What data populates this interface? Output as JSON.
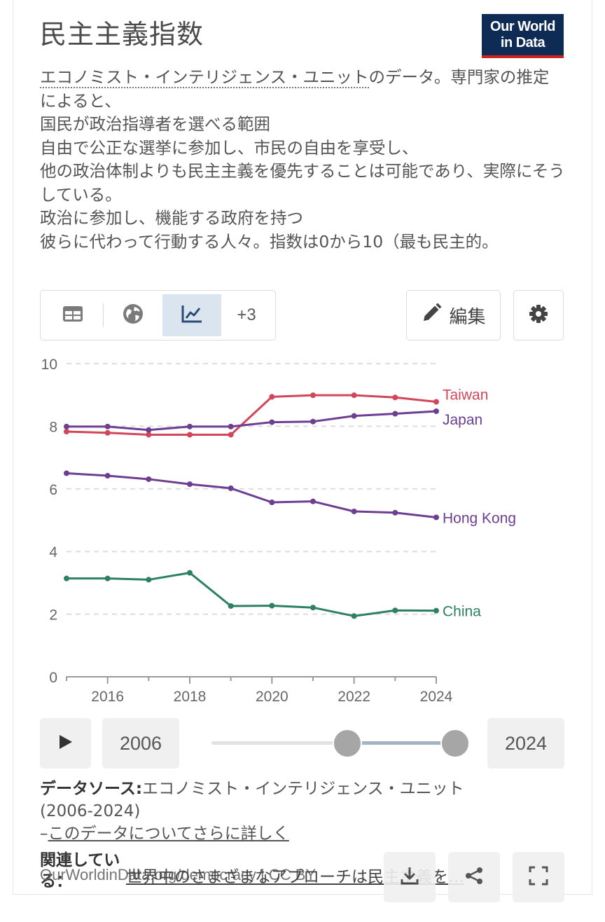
{
  "header": {
    "title": "民主主義指数",
    "logo_line1": "Our World",
    "logo_line2": "in Data"
  },
  "subtitle": {
    "link_text": "エコノミスト・インテリジェンス・ユニット",
    "text": "のデータ。専門家の推定によると、\n国民が政治指導者を選べる範囲\n自由で公正な選挙に参加し、市民の自由を享受し、\n他の政治体制よりも民主主義を優先することは可能であり、実際にそうしている。\n政治に参加し、機能する政府を持つ\n彼らに代わって行動する人々。指数は0から10（最も民主的。"
  },
  "toolbar": {
    "table_icon": "table-icon",
    "map_icon": "globe-icon",
    "chart_icon": "line-chart-icon",
    "more_label": "+3",
    "edit_label": "編集",
    "settings_icon": "gear-icon"
  },
  "chart_data": {
    "type": "line",
    "x": [
      2015,
      2016,
      2017,
      2018,
      2019,
      2020,
      2021,
      2022,
      2023,
      2024
    ],
    "xticks": [
      2016,
      2018,
      2020,
      2022,
      2024
    ],
    "yticks": [
      0,
      2,
      4,
      6,
      8,
      10
    ],
    "ylim": [
      0,
      10
    ],
    "grid": "horizontal dashed",
    "series": [
      {
        "name": "Taiwan",
        "color": "#d2465a",
        "values": [
          7.83,
          7.79,
          7.73,
          7.73,
          7.73,
          8.94,
          8.99,
          8.99,
          8.92,
          8.78
        ]
      },
      {
        "name": "Japan",
        "color": "#6d3e91",
        "values": [
          7.99,
          7.99,
          7.88,
          7.99,
          7.99,
          8.13,
          8.15,
          8.33,
          8.4,
          8.48
        ]
      },
      {
        "name": "Hong Kong",
        "color": "#6d3e91",
        "values": [
          6.5,
          6.42,
          6.31,
          6.15,
          6.02,
          5.57,
          5.6,
          5.28,
          5.24,
          5.09
        ]
      },
      {
        "name": "China",
        "color": "#2d8065",
        "values": [
          3.14,
          3.14,
          3.1,
          3.32,
          2.26,
          2.27,
          2.21,
          1.94,
          2.12,
          2.11
        ]
      }
    ]
  },
  "timeline": {
    "play_icon": "play-icon",
    "start_year": "2006",
    "end_year": "2024"
  },
  "source": {
    "label": "データソース:",
    "name": "エコノミスト・インテリジェンス・ユニット",
    "range": "(2006-2024)",
    "more_prefix": "–",
    "more_link": "このデータについてさらに詳しく"
  },
  "footer": {
    "related_label": "関連している：",
    "related_link": "世界中のさまざまなアプローチは民主主義を…",
    "url": "OurWorldinData.org/democracy | CC BY",
    "download_icon": "download-icon",
    "share_icon": "share-icon",
    "expand_icon": "expand-icon"
  }
}
